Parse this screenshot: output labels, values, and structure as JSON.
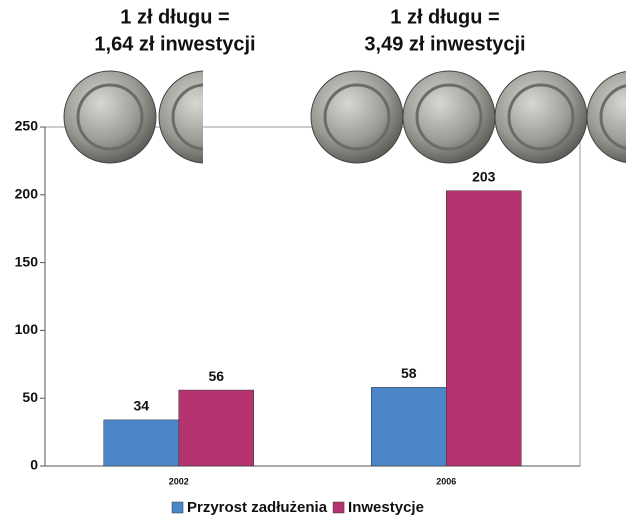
{
  "chart_data": {
    "type": "bar",
    "annotations": [
      [
        "1 zł długu =",
        "1,64 zł inwestycji"
      ],
      [
        "1 zł długu =",
        "3,49 zł inwestycji"
      ]
    ],
    "categories": [
      "2002",
      "2006"
    ],
    "series": [
      {
        "name": "Przyrost zadłużenia",
        "color": "#4a86c8",
        "values": [
          34,
          58
        ]
      },
      {
        "name": "Inwestycje",
        "color": "#b5336f",
        "values": [
          56,
          203
        ]
      }
    ],
    "ylim": [
      0,
      250
    ],
    "yticks": [
      0,
      50,
      100,
      150,
      200,
      250
    ],
    "legend": "bottom"
  }
}
